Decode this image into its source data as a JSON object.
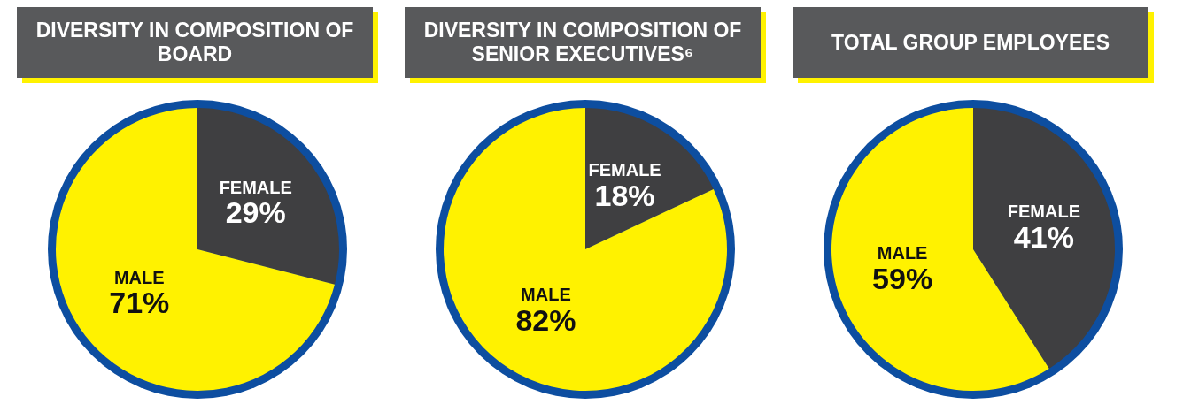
{
  "chart_data": [
    {
      "type": "pie",
      "title": "DIVERSITY IN COMPOSITION OF BOARD",
      "categories": [
        "FEMALE",
        "MALE"
      ],
      "values": [
        29,
        71
      ],
      "colors": [
        "#3f3f41",
        "#fff200"
      ],
      "value_labels": [
        "29%",
        "71%"
      ]
    },
    {
      "type": "pie",
      "title": "DIVERSITY IN COMPOSITION OF SENIOR EXECUTIVES⁶",
      "categories": [
        "FEMALE",
        "MALE"
      ],
      "values": [
        18,
        82
      ],
      "colors": [
        "#3f3f41",
        "#fff200"
      ],
      "value_labels": [
        "18%",
        "82%"
      ]
    },
    {
      "type": "pie",
      "title": "TOTAL GROUP EMPLOYEES",
      "categories": [
        "FEMALE",
        "MALE"
      ],
      "values": [
        41,
        59
      ],
      "colors": [
        "#3f3f41",
        "#fff200"
      ],
      "value_labels": [
        "41%",
        "59%"
      ]
    }
  ]
}
